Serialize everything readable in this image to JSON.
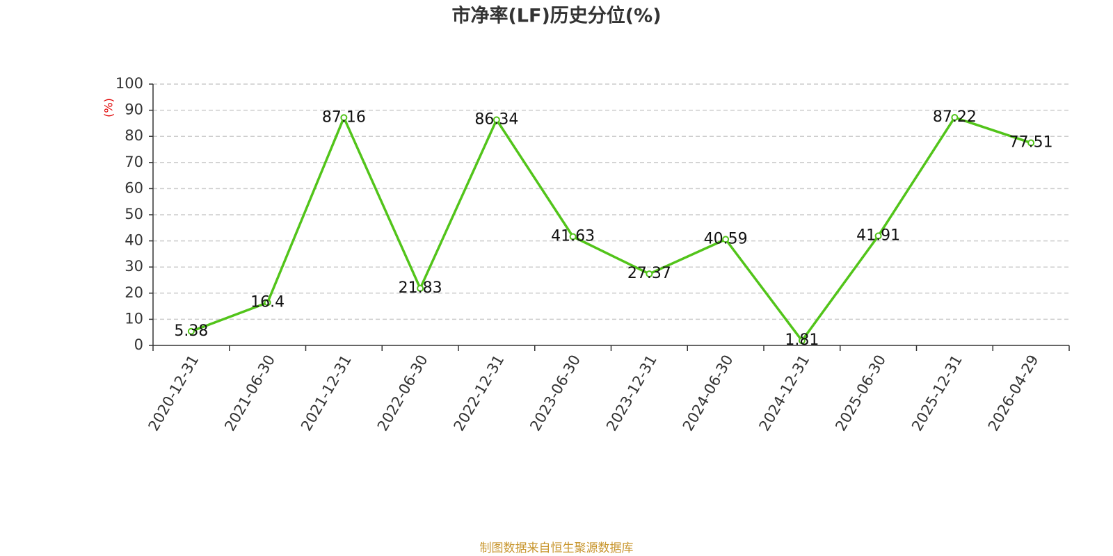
{
  "chart_data": {
    "type": "line",
    "title": "市净率(LF)历史分位(%)",
    "y_label": "(%)",
    "categories": [
      "2020-12-31",
      "2021-06-30",
      "2021-12-31",
      "2022-06-30",
      "2022-12-31",
      "2023-06-30",
      "2023-12-31",
      "2024-06-30",
      "2024-12-31",
      "2025-06-30",
      "2025-12-31",
      "2026-04-29"
    ],
    "values": [
      5.38,
      16.4,
      87.16,
      21.83,
      86.34,
      41.63,
      27.37,
      40.59,
      1.81,
      41.91,
      87.22,
      77.51
    ],
    "color": "#52c41a",
    "ylim": [
      0,
      100
    ],
    "yticks": [
      0,
      10,
      20,
      30,
      40,
      50,
      60,
      70,
      80,
      90,
      100
    ],
    "grid": true,
    "source": "制图数据来自恒生聚源数据库"
  }
}
